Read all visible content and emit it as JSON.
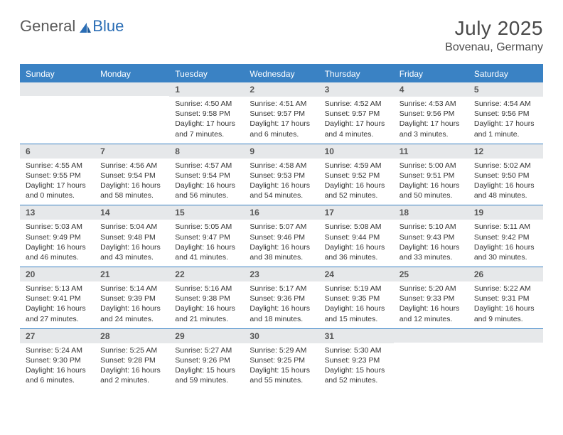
{
  "brand": {
    "word1": "General",
    "word2": "Blue"
  },
  "header": {
    "month_title": "July 2025",
    "location": "Bovenau, Germany"
  },
  "colors": {
    "accent": "#3a82c4",
    "daynum_bg": "#e6e8ea",
    "text": "#333333",
    "header_text": "#4a4a4a",
    "logo_gray": "#5a5a5a",
    "logo_blue": "#2a6db5",
    "background": "#ffffff"
  },
  "days_of_week": [
    "Sunday",
    "Monday",
    "Tuesday",
    "Wednesday",
    "Thursday",
    "Friday",
    "Saturday"
  ],
  "weeks": [
    [
      {
        "empty": true
      },
      {
        "empty": true
      },
      {
        "n": "1",
        "sunrise": "Sunrise: 4:50 AM",
        "sunset": "Sunset: 9:58 PM",
        "daylight": "Daylight: 17 hours and 7 minutes."
      },
      {
        "n": "2",
        "sunrise": "Sunrise: 4:51 AM",
        "sunset": "Sunset: 9:57 PM",
        "daylight": "Daylight: 17 hours and 6 minutes."
      },
      {
        "n": "3",
        "sunrise": "Sunrise: 4:52 AM",
        "sunset": "Sunset: 9:57 PM",
        "daylight": "Daylight: 17 hours and 4 minutes."
      },
      {
        "n": "4",
        "sunrise": "Sunrise: 4:53 AM",
        "sunset": "Sunset: 9:56 PM",
        "daylight": "Daylight: 17 hours and 3 minutes."
      },
      {
        "n": "5",
        "sunrise": "Sunrise: 4:54 AM",
        "sunset": "Sunset: 9:56 PM",
        "daylight": "Daylight: 17 hours and 1 minute."
      }
    ],
    [
      {
        "n": "6",
        "sunrise": "Sunrise: 4:55 AM",
        "sunset": "Sunset: 9:55 PM",
        "daylight": "Daylight: 17 hours and 0 minutes."
      },
      {
        "n": "7",
        "sunrise": "Sunrise: 4:56 AM",
        "sunset": "Sunset: 9:54 PM",
        "daylight": "Daylight: 16 hours and 58 minutes."
      },
      {
        "n": "8",
        "sunrise": "Sunrise: 4:57 AM",
        "sunset": "Sunset: 9:54 PM",
        "daylight": "Daylight: 16 hours and 56 minutes."
      },
      {
        "n": "9",
        "sunrise": "Sunrise: 4:58 AM",
        "sunset": "Sunset: 9:53 PM",
        "daylight": "Daylight: 16 hours and 54 minutes."
      },
      {
        "n": "10",
        "sunrise": "Sunrise: 4:59 AM",
        "sunset": "Sunset: 9:52 PM",
        "daylight": "Daylight: 16 hours and 52 minutes."
      },
      {
        "n": "11",
        "sunrise": "Sunrise: 5:00 AM",
        "sunset": "Sunset: 9:51 PM",
        "daylight": "Daylight: 16 hours and 50 minutes."
      },
      {
        "n": "12",
        "sunrise": "Sunrise: 5:02 AM",
        "sunset": "Sunset: 9:50 PM",
        "daylight": "Daylight: 16 hours and 48 minutes."
      }
    ],
    [
      {
        "n": "13",
        "sunrise": "Sunrise: 5:03 AM",
        "sunset": "Sunset: 9:49 PM",
        "daylight": "Daylight: 16 hours and 46 minutes."
      },
      {
        "n": "14",
        "sunrise": "Sunrise: 5:04 AM",
        "sunset": "Sunset: 9:48 PM",
        "daylight": "Daylight: 16 hours and 43 minutes."
      },
      {
        "n": "15",
        "sunrise": "Sunrise: 5:05 AM",
        "sunset": "Sunset: 9:47 PM",
        "daylight": "Daylight: 16 hours and 41 minutes."
      },
      {
        "n": "16",
        "sunrise": "Sunrise: 5:07 AM",
        "sunset": "Sunset: 9:46 PM",
        "daylight": "Daylight: 16 hours and 38 minutes."
      },
      {
        "n": "17",
        "sunrise": "Sunrise: 5:08 AM",
        "sunset": "Sunset: 9:44 PM",
        "daylight": "Daylight: 16 hours and 36 minutes."
      },
      {
        "n": "18",
        "sunrise": "Sunrise: 5:10 AM",
        "sunset": "Sunset: 9:43 PM",
        "daylight": "Daylight: 16 hours and 33 minutes."
      },
      {
        "n": "19",
        "sunrise": "Sunrise: 5:11 AM",
        "sunset": "Sunset: 9:42 PM",
        "daylight": "Daylight: 16 hours and 30 minutes."
      }
    ],
    [
      {
        "n": "20",
        "sunrise": "Sunrise: 5:13 AM",
        "sunset": "Sunset: 9:41 PM",
        "daylight": "Daylight: 16 hours and 27 minutes."
      },
      {
        "n": "21",
        "sunrise": "Sunrise: 5:14 AM",
        "sunset": "Sunset: 9:39 PM",
        "daylight": "Daylight: 16 hours and 24 minutes."
      },
      {
        "n": "22",
        "sunrise": "Sunrise: 5:16 AM",
        "sunset": "Sunset: 9:38 PM",
        "daylight": "Daylight: 16 hours and 21 minutes."
      },
      {
        "n": "23",
        "sunrise": "Sunrise: 5:17 AM",
        "sunset": "Sunset: 9:36 PM",
        "daylight": "Daylight: 16 hours and 18 minutes."
      },
      {
        "n": "24",
        "sunrise": "Sunrise: 5:19 AM",
        "sunset": "Sunset: 9:35 PM",
        "daylight": "Daylight: 16 hours and 15 minutes."
      },
      {
        "n": "25",
        "sunrise": "Sunrise: 5:20 AM",
        "sunset": "Sunset: 9:33 PM",
        "daylight": "Daylight: 16 hours and 12 minutes."
      },
      {
        "n": "26",
        "sunrise": "Sunrise: 5:22 AM",
        "sunset": "Sunset: 9:31 PM",
        "daylight": "Daylight: 16 hours and 9 minutes."
      }
    ],
    [
      {
        "n": "27",
        "sunrise": "Sunrise: 5:24 AM",
        "sunset": "Sunset: 9:30 PM",
        "daylight": "Daylight: 16 hours and 6 minutes."
      },
      {
        "n": "28",
        "sunrise": "Sunrise: 5:25 AM",
        "sunset": "Sunset: 9:28 PM",
        "daylight": "Daylight: 16 hours and 2 minutes."
      },
      {
        "n": "29",
        "sunrise": "Sunrise: 5:27 AM",
        "sunset": "Sunset: 9:26 PM",
        "daylight": "Daylight: 15 hours and 59 minutes."
      },
      {
        "n": "30",
        "sunrise": "Sunrise: 5:29 AM",
        "sunset": "Sunset: 9:25 PM",
        "daylight": "Daylight: 15 hours and 55 minutes."
      },
      {
        "n": "31",
        "sunrise": "Sunrise: 5:30 AM",
        "sunset": "Sunset: 9:23 PM",
        "daylight": "Daylight: 15 hours and 52 minutes."
      },
      {
        "empty": true
      },
      {
        "empty": true
      }
    ]
  ]
}
